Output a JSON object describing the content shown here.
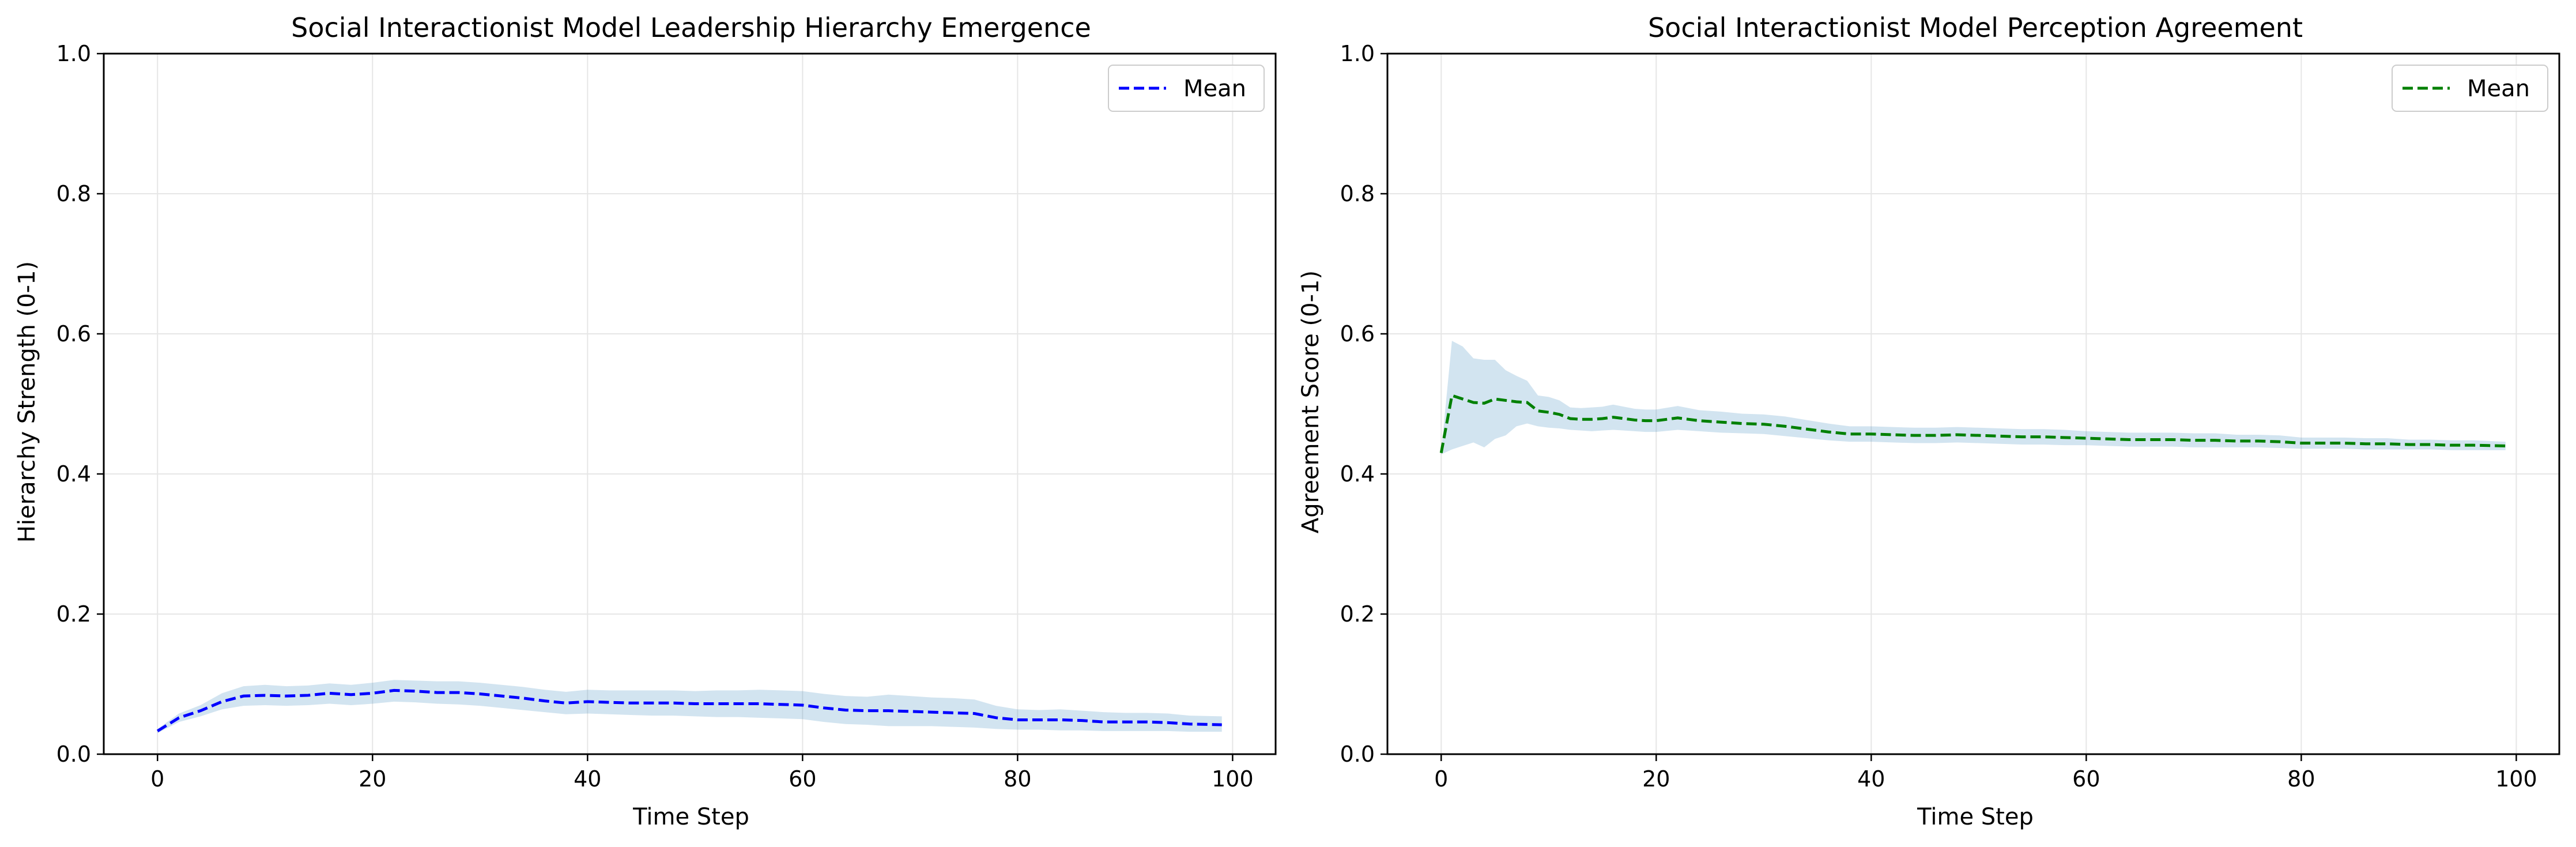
{
  "chart_data": [
    {
      "type": "line",
      "title": "Social Interactionist Model Leadership Hierarchy Emergence",
      "xlabel": "Time Step",
      "ylabel": "Hierarchy Strength (0-1)",
      "xlim": [
        -5,
        104
      ],
      "ylim": [
        0,
        1
      ],
      "xticks": [
        0,
        20,
        40,
        60,
        80,
        100
      ],
      "xtick_labels": [
        "0",
        "20",
        "40",
        "60",
        "80",
        "100"
      ],
      "yticks": [
        0,
        0.2,
        0.4,
        0.6,
        0.8,
        1.0
      ],
      "ytick_labels": [
        "0.0",
        "0.2",
        "0.4",
        "0.6",
        "0.8",
        "1.0"
      ],
      "grid": true,
      "legend_position": "upper right",
      "series": [
        {
          "name": "Mean",
          "color": "#0000ff",
          "line_style": "dashed",
          "band_color": "#1f77b4",
          "band_opacity": 0.2,
          "x": [
            0,
            2,
            4,
            6,
            8,
            10,
            12,
            14,
            16,
            18,
            20,
            22,
            24,
            26,
            28,
            30,
            32,
            34,
            36,
            38,
            40,
            42,
            44,
            46,
            48,
            50,
            52,
            54,
            56,
            58,
            60,
            62,
            64,
            66,
            68,
            70,
            72,
            74,
            76,
            78,
            80,
            82,
            84,
            86,
            88,
            90,
            92,
            94,
            96,
            99
          ],
          "values": [
            0.033,
            0.052,
            0.062,
            0.075,
            0.083,
            0.084,
            0.083,
            0.084,
            0.087,
            0.085,
            0.087,
            0.091,
            0.09,
            0.088,
            0.088,
            0.086,
            0.083,
            0.08,
            0.076,
            0.073,
            0.075,
            0.074,
            0.073,
            0.073,
            0.073,
            0.072,
            0.072,
            0.072,
            0.072,
            0.071,
            0.07,
            0.066,
            0.063,
            0.062,
            0.062,
            0.061,
            0.06,
            0.059,
            0.058,
            0.052,
            0.049,
            0.049,
            0.049,
            0.048,
            0.046,
            0.046,
            0.046,
            0.045,
            0.043,
            0.042
          ],
          "lower": [
            0.03,
            0.046,
            0.054,
            0.064,
            0.069,
            0.07,
            0.069,
            0.07,
            0.072,
            0.07,
            0.072,
            0.075,
            0.074,
            0.072,
            0.071,
            0.069,
            0.066,
            0.063,
            0.06,
            0.057,
            0.058,
            0.057,
            0.056,
            0.055,
            0.055,
            0.054,
            0.053,
            0.053,
            0.052,
            0.051,
            0.05,
            0.046,
            0.043,
            0.042,
            0.04,
            0.04,
            0.04,
            0.039,
            0.038,
            0.036,
            0.035,
            0.035,
            0.034,
            0.034,
            0.033,
            0.033,
            0.033,
            0.033,
            0.032,
            0.032
          ],
          "upper": [
            0.036,
            0.058,
            0.07,
            0.087,
            0.097,
            0.099,
            0.097,
            0.098,
            0.101,
            0.099,
            0.102,
            0.106,
            0.105,
            0.104,
            0.104,
            0.102,
            0.099,
            0.096,
            0.092,
            0.089,
            0.092,
            0.091,
            0.091,
            0.091,
            0.091,
            0.09,
            0.091,
            0.091,
            0.092,
            0.091,
            0.09,
            0.086,
            0.083,
            0.082,
            0.085,
            0.083,
            0.081,
            0.08,
            0.078,
            0.069,
            0.064,
            0.063,
            0.064,
            0.062,
            0.06,
            0.059,
            0.059,
            0.058,
            0.055,
            0.054
          ]
        }
      ]
    },
    {
      "type": "line",
      "title": "Social Interactionist Model Perception Agreement",
      "xlabel": "Time Step",
      "ylabel": "Agreement Score (0-1)",
      "xlim": [
        -5,
        104
      ],
      "ylim": [
        0,
        1
      ],
      "xticks": [
        0,
        20,
        40,
        60,
        80,
        100
      ],
      "xtick_labels": [
        "0",
        "20",
        "40",
        "60",
        "80",
        "100"
      ],
      "yticks": [
        0,
        0.2,
        0.4,
        0.6,
        0.8,
        1.0
      ],
      "ytick_labels": [
        "0.0",
        "0.2",
        "0.4",
        "0.6",
        "0.8",
        "1.0"
      ],
      "grid": true,
      "legend_position": "upper right",
      "series": [
        {
          "name": "Mean",
          "color": "#008000",
          "line_style": "dashed",
          "band_color": "#1f77b4",
          "band_opacity": 0.2,
          "x": [
            0,
            1,
            2,
            3,
            4,
            5,
            6,
            7,
            8,
            9,
            10,
            11,
            12,
            13,
            14,
            15,
            16,
            17,
            18,
            19,
            20,
            22,
            24,
            26,
            28,
            30,
            32,
            34,
            36,
            38,
            40,
            42,
            44,
            46,
            48,
            50,
            52,
            54,
            56,
            58,
            60,
            62,
            64,
            66,
            68,
            70,
            72,
            74,
            76,
            78,
            80,
            82,
            84,
            86,
            88,
            90,
            92,
            94,
            96,
            99
          ],
          "values": [
            0.43,
            0.512,
            0.507,
            0.502,
            0.501,
            0.507,
            0.505,
            0.503,
            0.502,
            0.49,
            0.488,
            0.485,
            0.479,
            0.478,
            0.478,
            0.479,
            0.481,
            0.479,
            0.477,
            0.476,
            0.476,
            0.48,
            0.476,
            0.474,
            0.472,
            0.471,
            0.468,
            0.464,
            0.46,
            0.457,
            0.457,
            0.456,
            0.455,
            0.455,
            0.456,
            0.455,
            0.454,
            0.453,
            0.453,
            0.452,
            0.451,
            0.45,
            0.449,
            0.449,
            0.449,
            0.448,
            0.448,
            0.447,
            0.447,
            0.446,
            0.444,
            0.444,
            0.444,
            0.443,
            0.443,
            0.442,
            0.442,
            0.441,
            0.441,
            0.44
          ],
          "lower": [
            0.428,
            0.435,
            0.44,
            0.445,
            0.438,
            0.45,
            0.455,
            0.468,
            0.472,
            0.468,
            0.466,
            0.465,
            0.463,
            0.462,
            0.461,
            0.462,
            0.463,
            0.462,
            0.461,
            0.46,
            0.46,
            0.463,
            0.461,
            0.459,
            0.458,
            0.457,
            0.454,
            0.451,
            0.448,
            0.446,
            0.446,
            0.445,
            0.444,
            0.444,
            0.445,
            0.444,
            0.443,
            0.442,
            0.442,
            0.441,
            0.441,
            0.44,
            0.439,
            0.439,
            0.439,
            0.438,
            0.438,
            0.438,
            0.438,
            0.437,
            0.436,
            0.436,
            0.436,
            0.435,
            0.435,
            0.435,
            0.435,
            0.434,
            0.434,
            0.434
          ],
          "upper": [
            0.432,
            0.59,
            0.582,
            0.565,
            0.563,
            0.563,
            0.548,
            0.54,
            0.533,
            0.512,
            0.51,
            0.505,
            0.495,
            0.494,
            0.495,
            0.496,
            0.499,
            0.496,
            0.493,
            0.492,
            0.492,
            0.497,
            0.491,
            0.489,
            0.486,
            0.485,
            0.482,
            0.477,
            0.472,
            0.468,
            0.468,
            0.467,
            0.466,
            0.466,
            0.467,
            0.466,
            0.465,
            0.464,
            0.464,
            0.463,
            0.461,
            0.46,
            0.459,
            0.459,
            0.459,
            0.458,
            0.458,
            0.456,
            0.456,
            0.455,
            0.452,
            0.452,
            0.452,
            0.451,
            0.451,
            0.449,
            0.449,
            0.448,
            0.448,
            0.446
          ]
        }
      ]
    }
  ]
}
